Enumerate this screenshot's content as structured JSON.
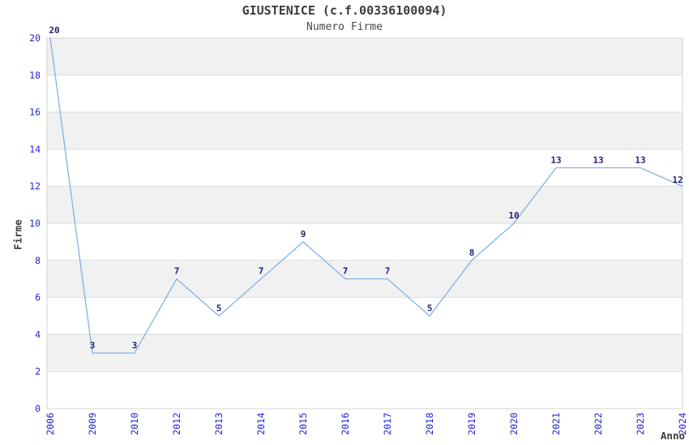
{
  "chart_data": {
    "type": "line",
    "title": "GIUSTENICE (c.f.00336100094)",
    "subtitle": "Numero Firme",
    "xlabel": "Anno",
    "ylabel": "Firme",
    "categories": [
      "2006",
      "2009",
      "2010",
      "2012",
      "2013",
      "2014",
      "2015",
      "2016",
      "2017",
      "2018",
      "2019",
      "2020",
      "2021",
      "2022",
      "2023",
      "2024"
    ],
    "values": [
      20,
      3,
      3,
      7,
      5,
      7,
      9,
      7,
      7,
      5,
      8,
      10,
      13,
      13,
      13,
      12
    ],
    "ylim": [
      0,
      20
    ],
    "y_tick_step": 2,
    "y_tick_labels": [
      "0",
      "2",
      "4",
      "6",
      "8",
      "10",
      "12",
      "14",
      "16",
      "18",
      "20"
    ],
    "grid": "horizontal",
    "band_fill": "alternating",
    "legend": "none",
    "point_labels_shown": true,
    "colors": {
      "line": "#7aacdf",
      "point_label": "#20207a",
      "tick_label": "#2323cd",
      "axis_title": "#3c3c3c",
      "title": "#3c3c3c",
      "subtitle": "#4a4a4a",
      "band": "#f1f1f1",
      "band_alt": "#ffffff",
      "gridline": "#dcdcdc",
      "plot_border": "#d3d3d3",
      "background": "#ffffff"
    }
  }
}
